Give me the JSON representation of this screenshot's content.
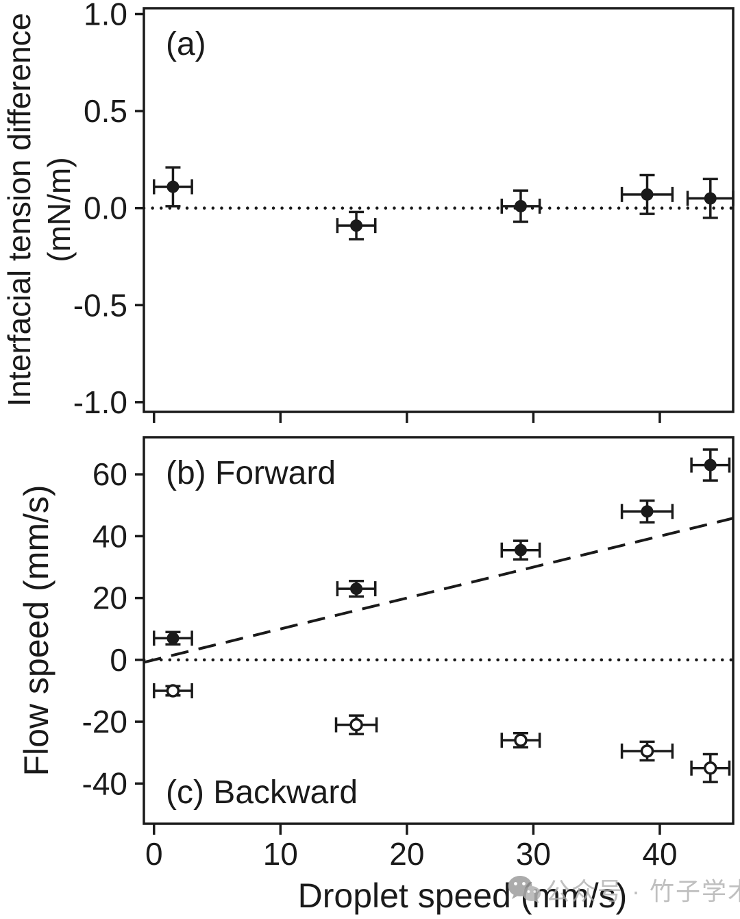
{
  "figure": {
    "watermark": {
      "text": "公众号 · 竹子学术",
      "icon": "wechat-icon",
      "color": "#acacac"
    }
  },
  "chart_data": [
    {
      "type": "scatter",
      "panel": "a",
      "label": "(a)",
      "ylabel_line1": "Interfacial tension difference",
      "ylabel_line2": "(mN/m)",
      "xlabel": "",
      "xlim": [
        -0.8,
        45.8
      ],
      "ylim": [
        -1.05,
        1.03
      ],
      "yticks": [
        1.0,
        0.5,
        0.0,
        -0.5,
        -1.0
      ],
      "ytick_labels": [
        "1.0",
        "0.5",
        "0.0",
        "-0.5",
        "-1.0"
      ],
      "xticks": [
        0,
        10,
        20,
        30,
        40
      ],
      "show_xtick_labels": false,
      "grid": false,
      "zero_line_style": "dotted",
      "series": [
        {
          "name": "interfacial-tension-difference",
          "marker": "filled-circle",
          "color": "#1a1a1a",
          "x": [
            1.5,
            16,
            29,
            39,
            44
          ],
          "y": [
            0.11,
            -0.09,
            0.01,
            0.07,
            0.05
          ],
          "xerr": [
            1.5,
            1.5,
            1.5,
            2.0,
            1.8
          ],
          "yerr": [
            0.1,
            0.07,
            0.08,
            0.1,
            0.1
          ]
        }
      ]
    },
    {
      "type": "scatter",
      "panel": "b-c",
      "label_forward": "(b) Forward",
      "label_backward": "(c) Backward",
      "ylabel": "Flow speed (mm/s)",
      "xlabel": "Droplet speed (mm/s)",
      "xlim": [
        -0.8,
        45.8
      ],
      "ylim": [
        -53,
        72
      ],
      "yticks": [
        60,
        40,
        20,
        0,
        -20,
        -40
      ],
      "ytick_labels": [
        "60",
        "40",
        "20",
        "0",
        "-20",
        "-40"
      ],
      "xticks": [
        0,
        10,
        20,
        30,
        40
      ],
      "xtick_labels": [
        "0",
        "10",
        "20",
        "30",
        "40"
      ],
      "show_xtick_labels": true,
      "grid": false,
      "zero_line_style": "dotted",
      "trend_line": {
        "style": "dashed",
        "slope": 1,
        "intercept": 0
      },
      "series": [
        {
          "name": "forward-flow",
          "marker": "filled-circle",
          "color": "#1a1a1a",
          "x": [
            1.5,
            16,
            29,
            39,
            44
          ],
          "y": [
            7,
            23,
            35.5,
            48,
            63
          ],
          "xerr": [
            1.5,
            1.5,
            1.5,
            2.0,
            1.5
          ],
          "yerr": [
            2.0,
            2.5,
            3.0,
            3.5,
            5.0
          ]
        },
        {
          "name": "backward-flow",
          "marker": "open-circle",
          "color": "#1a1a1a",
          "x": [
            1.5,
            16,
            29,
            39,
            44
          ],
          "y": [
            -10,
            -21,
            -26,
            -29.5,
            -35
          ],
          "xerr": [
            1.5,
            1.6,
            1.5,
            2.0,
            1.5
          ],
          "yerr": [
            1.5,
            3.0,
            2.3,
            3.0,
            4.5
          ]
        }
      ]
    }
  ]
}
